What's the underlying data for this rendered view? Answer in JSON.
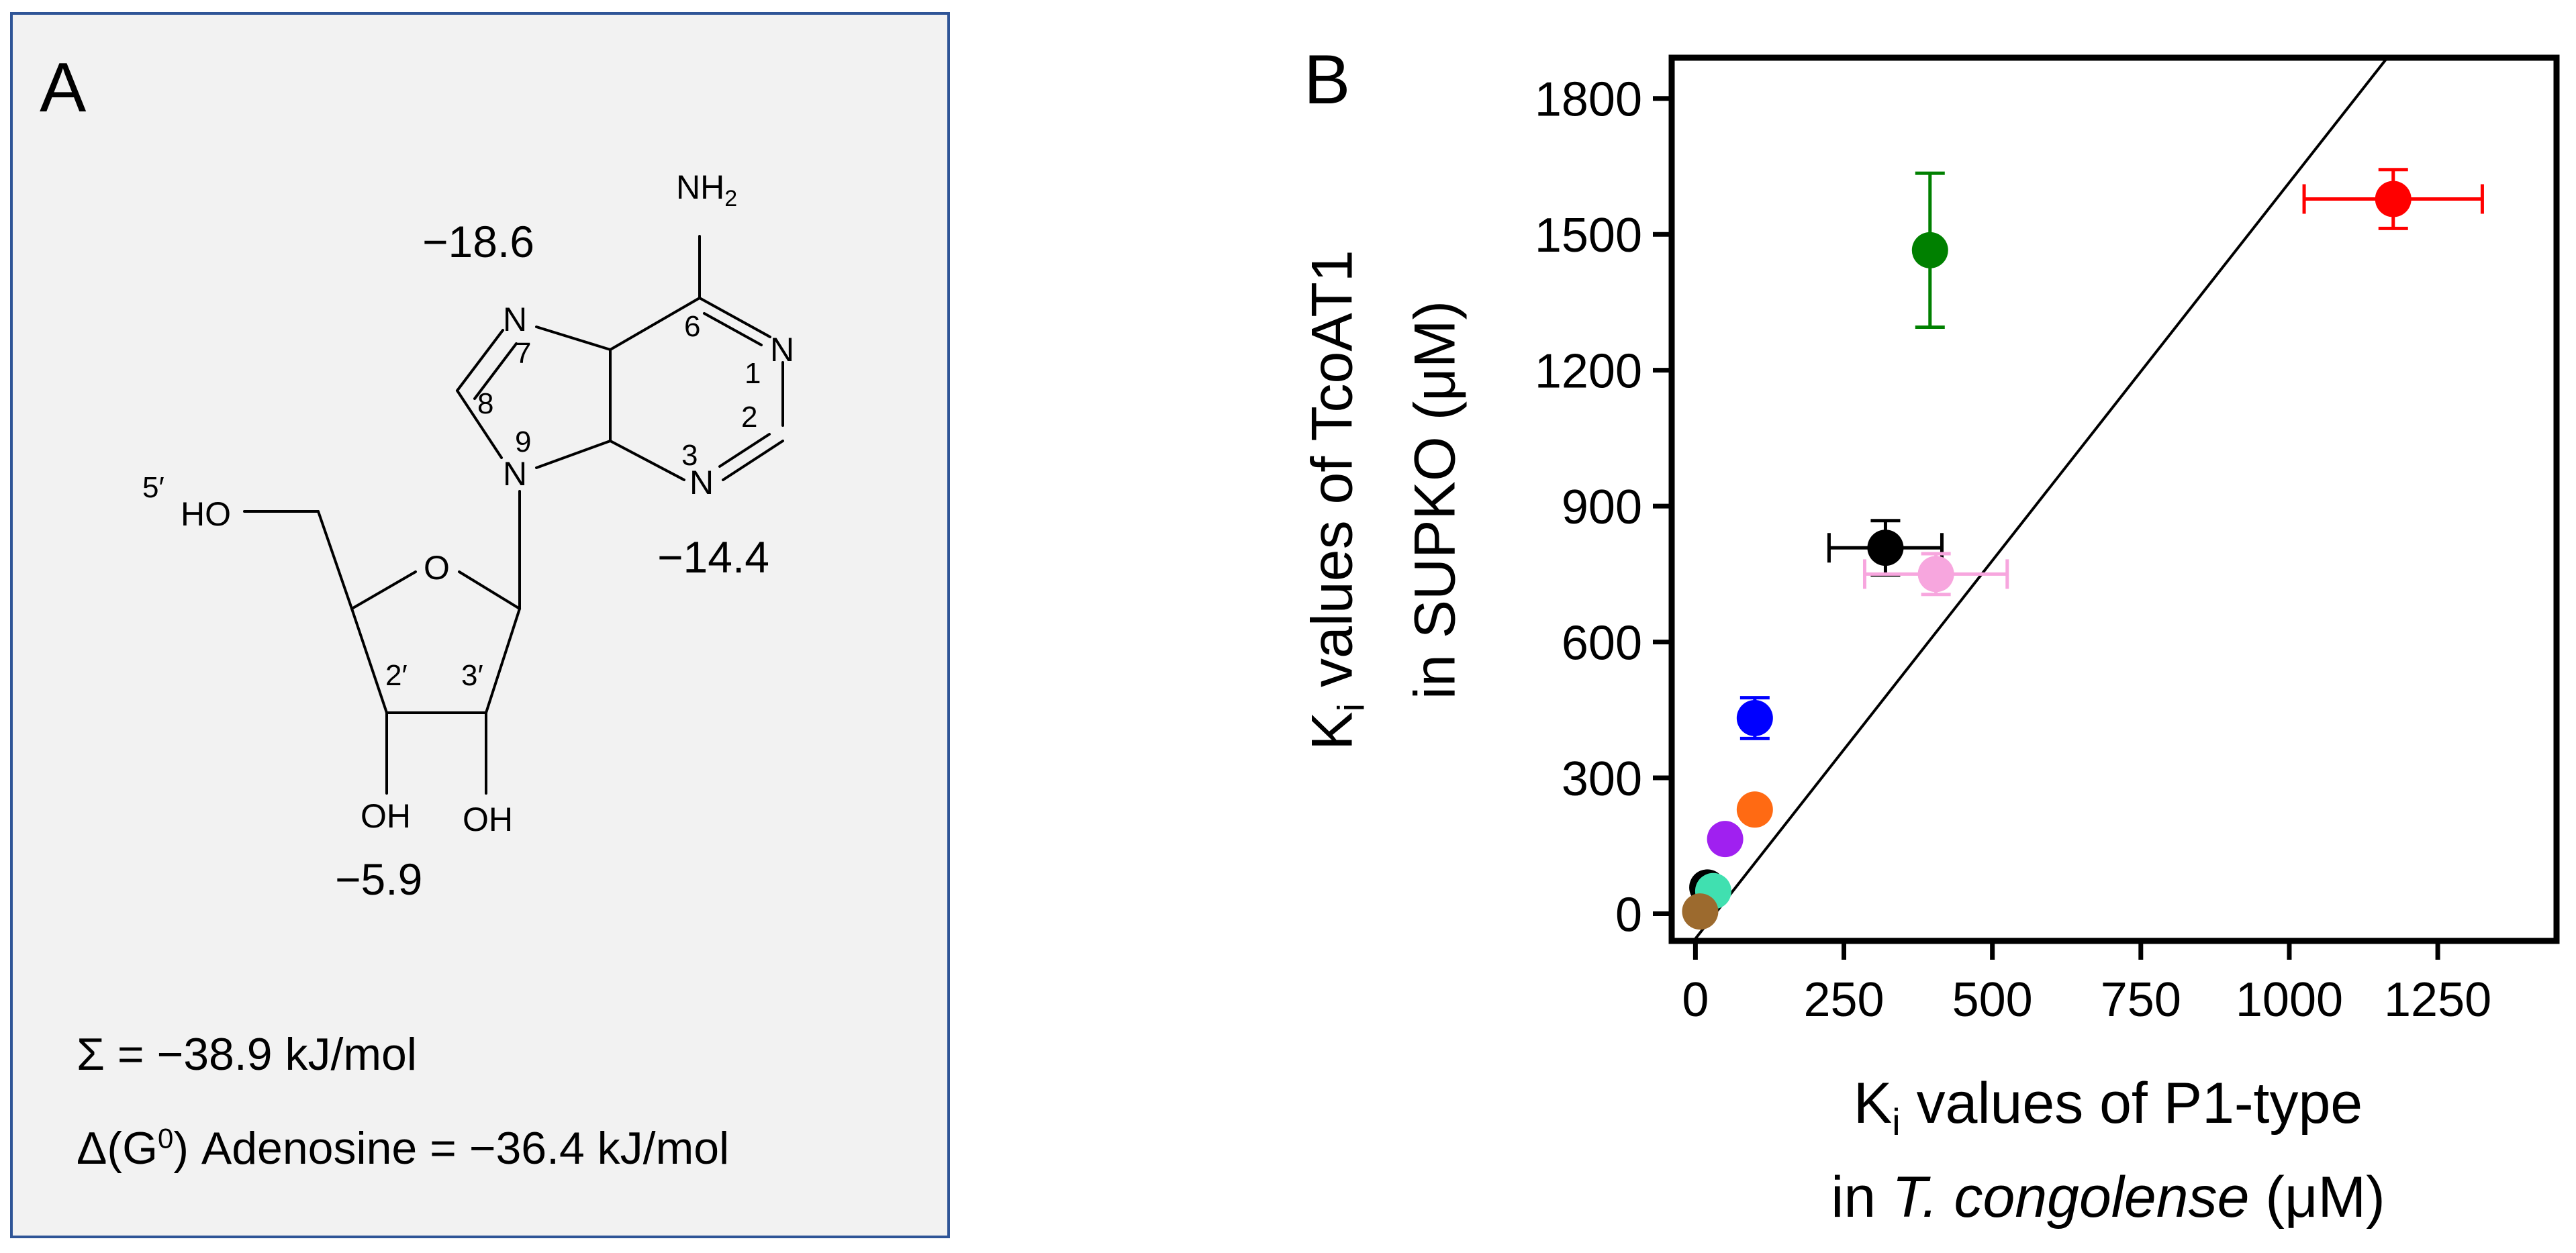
{
  "panel_a": {
    "label": "A",
    "atoms": {
      "nh2": "NH",
      "nh2_sub": "2",
      "n7": "N",
      "n1": "N",
      "n9": "N",
      "n3": "N",
      "o_ring": "O",
      "ho5": "HO",
      "oh2": "OH",
      "oh3": "OH"
    },
    "positions": {
      "p6": "6",
      "p7": "7",
      "p1": "1",
      "p8": "8",
      "p2": "2",
      "p9": "9",
      "p3": "3",
      "p5p": "5′",
      "p2p": "2′",
      "p3p": "3′"
    },
    "energies": {
      "n7": "−18.6",
      "n3": "−14.4",
      "oh": "−5.9"
    },
    "sum_line": "Σ = −38.9 kJ/mol",
    "delta_pre": "Δ(G",
    "delta_sup": "0",
    "delta_post": ") Adenosine = −36.4 kJ/mol",
    "colors": {
      "frame": "#2f5597",
      "background": "#f2f2f2"
    }
  },
  "panel_b": {
    "label": "B"
  },
  "chart_data": {
    "type": "scatter",
    "xlabel_line1_main": "K",
    "xlabel_line1_sub": "i",
    "xlabel_line1_rest": " values of P1-type",
    "xlabel_line2_pre": "in ",
    "xlabel_line2_italic": "T. congolense",
    "xlabel_line2_post": " (μM)",
    "ylabel_line1_main": "K",
    "ylabel_line1_sub": "i",
    "ylabel_line1_rest": " values of TcoAT1",
    "ylabel_line2": "in SUPKO (μM)",
    "xlim": [
      -40,
      1450
    ],
    "ylim": [
      -60,
      1890
    ],
    "xticks": [
      0,
      250,
      500,
      750,
      1000,
      1250
    ],
    "yticks": [
      0,
      300,
      600,
      900,
      1200,
      1500,
      1800
    ],
    "grid": false,
    "points": [
      {
        "x": 1175,
        "y": 1578,
        "xerr": 150,
        "yerr": 65,
        "color": "#ff0000"
      },
      {
        "x": 395,
        "y": 1465,
        "xerr": 0,
        "yerr": 170,
        "color": "#008000"
      },
      {
        "x": 320,
        "y": 808,
        "xerr": 95,
        "yerr": 60,
        "color": "#000000"
      },
      {
        "x": 405,
        "y": 750,
        "xerr": 120,
        "yerr": 45,
        "color": "#f7a6de"
      },
      {
        "x": 100,
        "y": 432,
        "xerr": 0,
        "yerr": 45,
        "color": "#0000ff"
      },
      {
        "x": 100,
        "y": 230,
        "xerr": 0,
        "yerr": 0,
        "color": "#ff6a13"
      },
      {
        "x": 50,
        "y": 165,
        "xerr": 0,
        "yerr": 0,
        "color": "#a020f0"
      },
      {
        "x": 20,
        "y": 58,
        "xerr": 0,
        "yerr": 0,
        "color": "#000000"
      },
      {
        "x": 30,
        "y": 50,
        "xerr": 0,
        "yerr": 0,
        "color": "#40e0b0"
      },
      {
        "x": 8,
        "y": 5,
        "xerr": 0,
        "yerr": 0,
        "color": "#9c6a2e"
      }
    ],
    "fit_line": {
      "x": [
        0,
        1165
      ],
      "y": [
        -55,
        1890
      ]
    }
  }
}
